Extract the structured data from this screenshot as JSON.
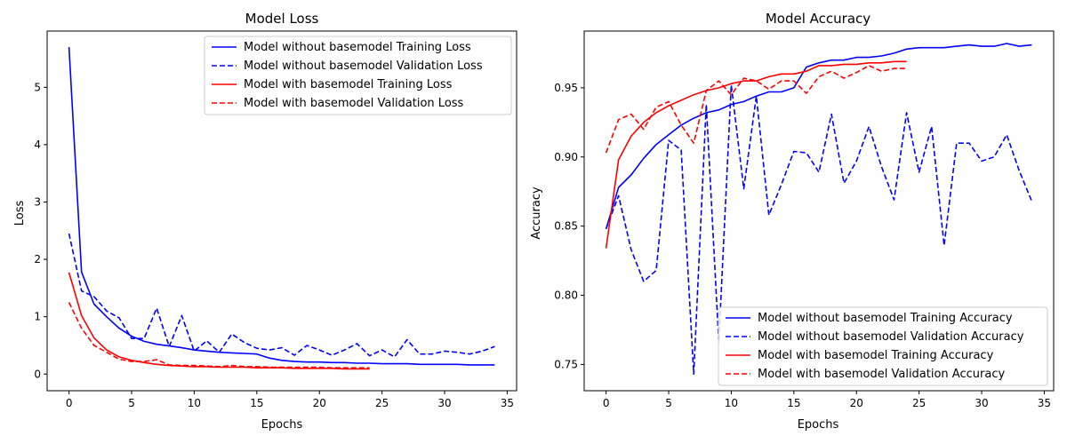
{
  "chart_data": [
    {
      "type": "line",
      "title": "Model Loss",
      "xlabel": "Epochs",
      "ylabel": "Loss",
      "xlim": [
        -1.75,
        35.75
      ],
      "ylim": [
        -0.29,
        5.98
      ],
      "xticks": [
        0,
        5,
        10,
        15,
        20,
        25,
        30,
        35
      ],
      "yticks": [
        0,
        1,
        2,
        3,
        4,
        5
      ],
      "ytick_decimals": 0,
      "legend_position": "upper right",
      "series": [
        {
          "name": "Model without basemodel Training Loss",
          "color": "#0000ff",
          "dash": "solid",
          "x": [
            0,
            1,
            2,
            3,
            4,
            5,
            6,
            7,
            8,
            9,
            10,
            11,
            12,
            13,
            14,
            15,
            16,
            17,
            18,
            19,
            20,
            21,
            22,
            23,
            24,
            25,
            26,
            27,
            28,
            29,
            30,
            31,
            32,
            33,
            34
          ],
          "values": [
            5.7,
            1.78,
            1.22,
            1.0,
            0.8,
            0.66,
            0.57,
            0.52,
            0.49,
            0.46,
            0.42,
            0.4,
            0.38,
            0.37,
            0.36,
            0.35,
            0.28,
            0.24,
            0.22,
            0.21,
            0.21,
            0.2,
            0.2,
            0.19,
            0.19,
            0.18,
            0.18,
            0.18,
            0.17,
            0.17,
            0.17,
            0.17,
            0.16,
            0.16,
            0.16
          ]
        },
        {
          "name": "Model without basemodel Validation Loss",
          "color": "#0000ff",
          "dash": "dashed",
          "x": [
            0,
            1,
            2,
            3,
            4,
            5,
            6,
            7,
            8,
            9,
            10,
            11,
            12,
            13,
            14,
            15,
            16,
            17,
            18,
            19,
            20,
            21,
            22,
            23,
            24,
            25,
            26,
            27,
            28,
            29,
            30,
            31,
            32,
            33,
            34
          ],
          "values": [
            2.45,
            1.45,
            1.35,
            1.1,
            0.98,
            0.62,
            0.62,
            1.15,
            0.48,
            1.02,
            0.4,
            0.58,
            0.38,
            0.7,
            0.55,
            0.45,
            0.42,
            0.46,
            0.33,
            0.5,
            0.42,
            0.33,
            0.42,
            0.53,
            0.32,
            0.42,
            0.3,
            0.6,
            0.35,
            0.35,
            0.4,
            0.38,
            0.35,
            0.4,
            0.48
          ]
        },
        {
          "name": "Model with basemodel Training Loss",
          "color": "#ff0000",
          "dash": "solid",
          "x": [
            0,
            1,
            2,
            3,
            4,
            5,
            6,
            7,
            8,
            9,
            10,
            11,
            12,
            13,
            14,
            15,
            16,
            17,
            18,
            19,
            20,
            21,
            22,
            23,
            24
          ],
          "values": [
            1.77,
            1.02,
            0.63,
            0.42,
            0.3,
            0.24,
            0.2,
            0.17,
            0.15,
            0.14,
            0.13,
            0.13,
            0.12,
            0.12,
            0.12,
            0.11,
            0.11,
            0.11,
            0.1,
            0.1,
            0.1,
            0.1,
            0.09,
            0.09,
            0.09
          ]
        },
        {
          "name": "Model with basemodel Validation Loss",
          "color": "#ff0000",
          "dash": "dashed",
          "x": [
            0,
            1,
            2,
            3,
            4,
            5,
            6,
            7,
            8,
            9,
            10,
            11,
            12,
            13,
            14,
            15,
            16,
            17,
            18,
            19,
            20,
            21,
            22,
            23,
            24
          ],
          "values": [
            1.25,
            0.8,
            0.5,
            0.38,
            0.26,
            0.22,
            0.22,
            0.25,
            0.16,
            0.15,
            0.15,
            0.14,
            0.13,
            0.15,
            0.13,
            0.13,
            0.12,
            0.12,
            0.12,
            0.12,
            0.12,
            0.11,
            0.11,
            0.11,
            0.11
          ]
        }
      ]
    },
    {
      "type": "line",
      "title": "Model Accuracy",
      "xlabel": "Epochs",
      "ylabel": "Accuracy",
      "xlim": [
        -1.75,
        35.75
      ],
      "ylim": [
        0.731,
        0.991
      ],
      "xticks": [
        0,
        5,
        10,
        15,
        20,
        25,
        30,
        35
      ],
      "yticks": [
        0.75,
        0.8,
        0.85,
        0.9,
        0.95
      ],
      "ytick_decimals": 2,
      "legend_position": "lower right",
      "series": [
        {
          "name": "Model without basemodel Training Accuracy",
          "color": "#0000ff",
          "dash": "solid",
          "x": [
            0,
            1,
            2,
            3,
            4,
            5,
            6,
            7,
            8,
            9,
            10,
            11,
            12,
            13,
            14,
            15,
            16,
            17,
            18,
            19,
            20,
            21,
            22,
            23,
            24,
            25,
            26,
            27,
            28,
            29,
            30,
            31,
            32,
            33,
            34
          ],
          "values": [
            0.848,
            0.878,
            0.887,
            0.899,
            0.909,
            0.916,
            0.923,
            0.928,
            0.932,
            0.934,
            0.938,
            0.94,
            0.944,
            0.947,
            0.947,
            0.95,
            0.965,
            0.968,
            0.97,
            0.97,
            0.972,
            0.972,
            0.973,
            0.975,
            0.978,
            0.979,
            0.979,
            0.979,
            0.98,
            0.981,
            0.98,
            0.98,
            0.982,
            0.98,
            0.981
          ]
        },
        {
          "name": "Model without basemodel Validation Accuracy",
          "color": "#0000ff",
          "dash": "dashed",
          "x": [
            0,
            1,
            2,
            3,
            4,
            5,
            6,
            7,
            8,
            9,
            10,
            11,
            12,
            13,
            14,
            15,
            16,
            17,
            18,
            19,
            20,
            21,
            22,
            23,
            24,
            25,
            26,
            27,
            28,
            29,
            30,
            31,
            32,
            33,
            34
          ],
          "values": [
            0.848,
            0.872,
            0.833,
            0.81,
            0.818,
            0.912,
            0.905,
            0.743,
            0.938,
            0.766,
            0.952,
            0.877,
            0.944,
            0.858,
            0.88,
            0.904,
            0.903,
            0.889,
            0.931,
            0.881,
            0.897,
            0.922,
            0.893,
            0.869,
            0.932,
            0.889,
            0.922,
            0.836,
            0.91,
            0.91,
            0.897,
            0.9,
            0.916,
            0.89,
            0.868
          ]
        },
        {
          "name": "Model with basemodel Training Accuracy",
          "color": "#ff0000",
          "dash": "solid",
          "x": [
            0,
            1,
            2,
            3,
            4,
            5,
            6,
            7,
            8,
            9,
            10,
            11,
            12,
            13,
            14,
            15,
            16,
            17,
            18,
            19,
            20,
            21,
            22,
            23,
            24
          ],
          "values": [
            0.834,
            0.898,
            0.915,
            0.925,
            0.932,
            0.937,
            0.941,
            0.945,
            0.948,
            0.95,
            0.953,
            0.955,
            0.955,
            0.958,
            0.96,
            0.96,
            0.962,
            0.966,
            0.966,
            0.967,
            0.967,
            0.968,
            0.968,
            0.969,
            0.969
          ]
        },
        {
          "name": "Model with basemodel Validation Accuracy",
          "color": "#ff0000",
          "dash": "dashed",
          "x": [
            0,
            1,
            2,
            3,
            4,
            5,
            6,
            7,
            8,
            9,
            10,
            11,
            12,
            13,
            14,
            15,
            16,
            17,
            18,
            19,
            20,
            21,
            22,
            23,
            24
          ],
          "values": [
            0.903,
            0.927,
            0.931,
            0.92,
            0.936,
            0.94,
            0.923,
            0.91,
            0.948,
            0.955,
            0.945,
            0.957,
            0.955,
            0.949,
            0.955,
            0.955,
            0.946,
            0.958,
            0.962,
            0.957,
            0.961,
            0.966,
            0.962,
            0.964,
            0.964
          ]
        }
      ]
    }
  ]
}
